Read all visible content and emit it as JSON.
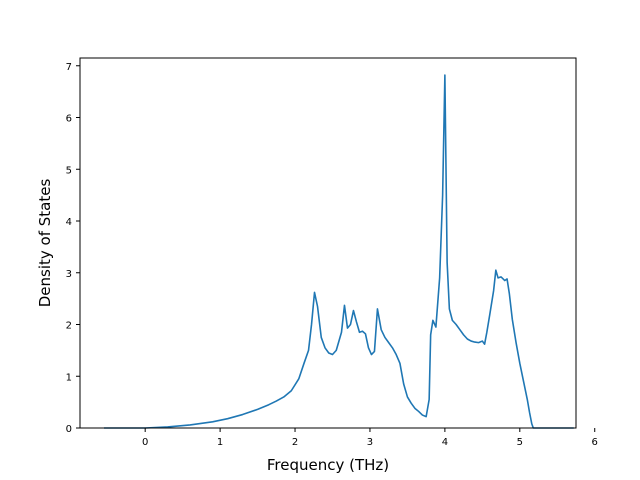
{
  "chart_data": {
    "type": "line",
    "title": "",
    "xlabel": "Frequency (THz)",
    "ylabel": "Density of States",
    "xlim": [
      -0.87,
      5.75
    ],
    "ylim": [
      0,
      7.15
    ],
    "xticks": [
      0,
      1,
      2,
      3,
      4,
      5,
      6
    ],
    "yticks": [
      0,
      1,
      2,
      3,
      4,
      5,
      6,
      7
    ],
    "grid": false,
    "legend": "none",
    "line_color": "#1f77b4",
    "series": [
      {
        "x": [
          -0.55,
          -0.3,
          0.0,
          0.3,
          0.6,
          0.9,
          1.1,
          1.3,
          1.5,
          1.65,
          1.75,
          1.85,
          1.95,
          2.05,
          2.12,
          2.18,
          2.22,
          2.26,
          2.3,
          2.35,
          2.4,
          2.45,
          2.5,
          2.55,
          2.58,
          2.62,
          2.66,
          2.7,
          2.74,
          2.78,
          2.82,
          2.86,
          2.9,
          2.94,
          2.98,
          3.02,
          3.06,
          3.1,
          3.15,
          3.2,
          3.25,
          3.3,
          3.35,
          3.4,
          3.45,
          3.5,
          3.55,
          3.6,
          3.65,
          3.7,
          3.75,
          3.79,
          3.81,
          3.84,
          3.88,
          3.93,
          3.97,
          4.0,
          4.03,
          4.06,
          4.1,
          4.15,
          4.2,
          4.25,
          4.3,
          4.35,
          4.4,
          4.45,
          4.5,
          4.53,
          4.56,
          4.6,
          4.65,
          4.68,
          4.71,
          4.75,
          4.8,
          4.83,
          4.86,
          4.9,
          4.95,
          5.0,
          5.05,
          5.1,
          5.13,
          5.16,
          5.18,
          5.2,
          5.3,
          5.5,
          5.72
        ],
        "y": [
          0,
          0,
          0,
          0.02,
          0.06,
          0.12,
          0.18,
          0.26,
          0.36,
          0.45,
          0.52,
          0.6,
          0.72,
          0.95,
          1.25,
          1.5,
          2.0,
          2.62,
          2.35,
          1.75,
          1.55,
          1.45,
          1.42,
          1.5,
          1.65,
          1.85,
          2.37,
          1.93,
          2.0,
          2.27,
          2.05,
          1.85,
          1.87,
          1.82,
          1.55,
          1.42,
          1.48,
          2.3,
          1.9,
          1.75,
          1.65,
          1.55,
          1.42,
          1.25,
          0.85,
          0.6,
          0.48,
          0.38,
          0.32,
          0.25,
          0.22,
          0.55,
          1.8,
          2.08,
          1.95,
          2.9,
          4.5,
          6.82,
          3.2,
          2.3,
          2.08,
          2.0,
          1.9,
          1.8,
          1.72,
          1.68,
          1.66,
          1.65,
          1.68,
          1.62,
          1.85,
          2.2,
          2.65,
          3.05,
          2.9,
          2.92,
          2.85,
          2.88,
          2.6,
          2.1,
          1.65,
          1.25,
          0.9,
          0.55,
          0.3,
          0.08,
          0,
          0,
          0,
          0,
          0
        ]
      }
    ]
  }
}
